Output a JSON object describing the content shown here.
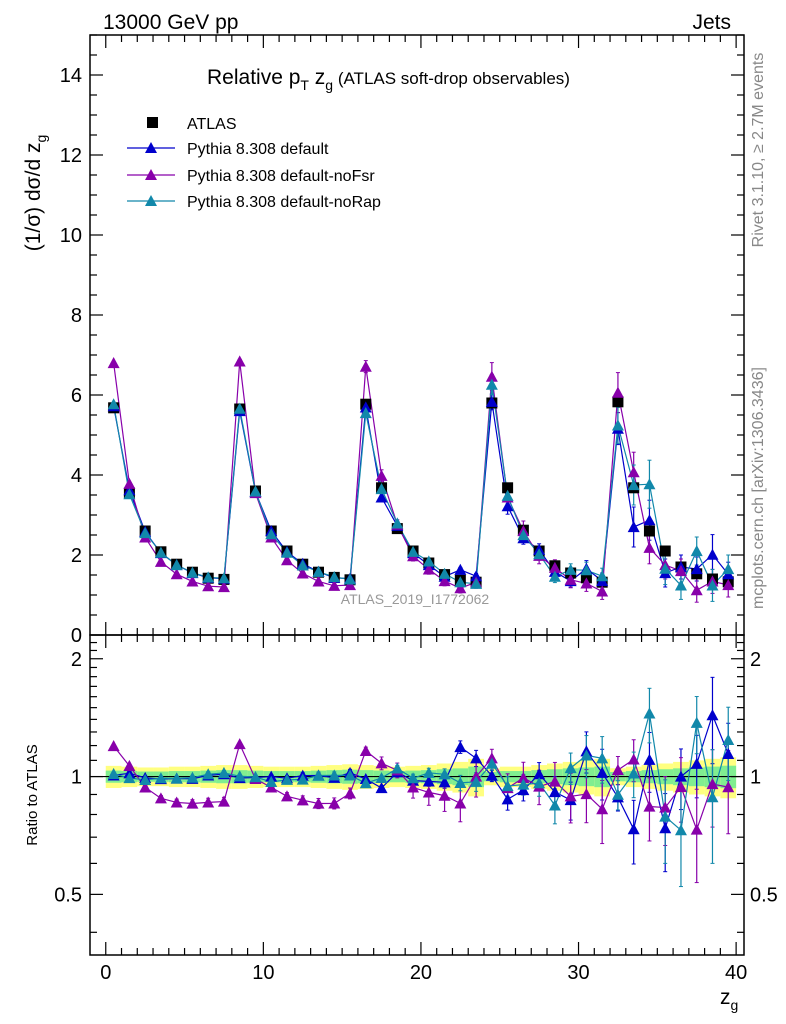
{
  "header": {
    "left": "13000 GeV pp",
    "right": "Jets"
  },
  "side_texts": {
    "rivet": "Rivet 3.1.10, ≥ 2.7M events",
    "mcplots": "mcplots.cern.ch [arXiv:1306.3436]"
  },
  "watermark": "ATLAS_2019_I1772062",
  "chart_data": {
    "type": "scatter",
    "title": "Relative pT zg (ATLAS soft-drop observables)",
    "title_parts": {
      "a": "Relative p",
      "sub1": "T",
      "b": " z",
      "sub2": "g",
      "c": " (ATLAS soft-drop observables)"
    },
    "xlabel": "zg",
    "xlabel_parts": {
      "a": "z",
      "sub": "g"
    },
    "ylabel": "(1/σ) dσ/d zg",
    "ylabel_parts": {
      "a": "(1/σ) dσ/d z",
      "sub": "g"
    },
    "ratio_ylabel": "Ratio to ATLAS",
    "xlim": [
      -1,
      40.5
    ],
    "ylim": [
      0,
      15
    ],
    "ratio_ylim": [
      0.35,
      2.3
    ],
    "xticks": [
      0,
      10,
      20,
      30,
      40
    ],
    "yticks": [
      0,
      2,
      4,
      6,
      8,
      10,
      12,
      14
    ],
    "ratio_yticks": [
      0.5,
      1,
      2
    ],
    "legend_position": "top-left",
    "x": [
      0.5,
      1.5,
      2.5,
      3.5,
      4.5,
      5.5,
      6.5,
      7.5,
      8.5,
      9.5,
      10.5,
      11.5,
      12.5,
      13.5,
      14.5,
      15.5,
      16.5,
      17.5,
      18.5,
      19.5,
      20.5,
      21.5,
      22.5,
      23.5,
      24.5,
      25.5,
      26.5,
      27.5,
      28.5,
      29.5,
      30.5,
      31.5,
      32.5,
      33.5,
      34.5,
      35.5,
      36.5,
      37.5,
      38.5,
      39.5
    ],
    "data": {
      "name": "ATLAS",
      "color": "#000000",
      "y": [
        5.68,
        3.55,
        2.6,
        2.08,
        1.77,
        1.57,
        1.42,
        1.39,
        5.65,
        3.6,
        2.6,
        2.1,
        1.77,
        1.57,
        1.44,
        1.38,
        5.77,
        3.68,
        2.66,
        2.1,
        1.8,
        1.51,
        1.37,
        1.32,
        5.8,
        3.68,
        2.62,
        2.1,
        1.73,
        1.55,
        1.43,
        1.32,
        5.83,
        3.68,
        2.6,
        2.1,
        1.7,
        1.53,
        1.4,
        1.33
      ],
      "band_half_width": [
        0.065,
        0.06,
        0.055,
        0.055,
        0.06,
        0.06,
        0.065,
        0.07,
        0.07,
        0.065,
        0.06,
        0.06,
        0.06,
        0.065,
        0.07,
        0.075,
        0.07,
        0.065,
        0.06,
        0.065,
        0.07,
        0.08,
        0.09,
        0.11,
        0.05,
        0.06,
        0.06,
        0.07,
        0.08,
        0.09,
        0.1,
        0.11,
        0.05,
        0.06,
        0.07,
        0.08,
        0.09,
        0.1,
        0.11,
        0.12
      ]
    },
    "series": [
      {
        "name": "Pythia 8.308 default",
        "color": "#0000cc",
        "y": [
          5.72,
          3.62,
          2.58,
          2.05,
          1.75,
          1.55,
          1.43,
          1.41,
          5.6,
          3.58,
          2.6,
          2.08,
          1.78,
          1.58,
          1.43,
          1.41,
          5.69,
          3.44,
          2.73,
          2.05,
          1.75,
          1.46,
          1.63,
          1.47,
          5.83,
          3.22,
          2.42,
          2.13,
          1.58,
          1.35,
          1.66,
          1.35,
          5.16,
          2.7,
          2.87,
          1.55,
          1.7,
          1.65,
          2.01,
          1.52
        ],
        "err": [
          0.02,
          0.02,
          0.02,
          0.02,
          0.02,
          0.02,
          0.02,
          0.02,
          0.04,
          0.03,
          0.03,
          0.03,
          0.03,
          0.03,
          0.03,
          0.03,
          0.05,
          0.05,
          0.05,
          0.05,
          0.05,
          0.05,
          0.06,
          0.07,
          0.2,
          0.2,
          0.15,
          0.15,
          0.15,
          0.15,
          0.2,
          0.2,
          0.4,
          0.5,
          0.5,
          0.35,
          0.3,
          0.3,
          0.5,
          0.3
        ]
      },
      {
        "name": "Pythia 8.308 default-noFsr",
        "color": "#8800aa",
        "y": [
          6.8,
          3.78,
          2.44,
          1.83,
          1.52,
          1.34,
          1.22,
          1.2,
          6.84,
          3.55,
          2.44,
          1.87,
          1.54,
          1.34,
          1.23,
          1.25,
          6.71,
          3.98,
          2.76,
          1.97,
          1.64,
          1.35,
          1.17,
          1.32,
          6.46,
          3.44,
          2.6,
          1.98,
          1.68,
          1.38,
          1.29,
          1.09,
          6.06,
          4.07,
          2.18,
          1.75,
          1.6,
          1.12,
          1.34,
          1.25
        ],
        "err": [
          0.03,
          0.03,
          0.03,
          0.03,
          0.03,
          0.03,
          0.03,
          0.03,
          0.05,
          0.05,
          0.04,
          0.04,
          0.04,
          0.04,
          0.04,
          0.04,
          0.15,
          0.15,
          0.12,
          0.12,
          0.12,
          0.12,
          0.12,
          0.15,
          0.35,
          0.3,
          0.25,
          0.2,
          0.2,
          0.2,
          0.2,
          0.2,
          0.5,
          0.5,
          0.4,
          0.35,
          0.3,
          0.3,
          0.3,
          0.3
        ]
      },
      {
        "name": "Pythia 8.308 default-noRap",
        "color": "#1188aa",
        "y": [
          5.77,
          3.52,
          2.55,
          2.06,
          1.75,
          1.56,
          1.44,
          1.42,
          5.66,
          3.59,
          2.52,
          2.06,
          1.74,
          1.58,
          1.45,
          1.39,
          5.55,
          3.65,
          2.79,
          2.08,
          1.84,
          1.53,
          1.32,
          1.28,
          6.26,
          3.48,
          2.5,
          2.02,
          1.46,
          1.63,
          1.62,
          1.47,
          5.24,
          3.75,
          3.77,
          1.66,
          1.24,
          2.1,
          1.24,
          1.65
        ],
        "err": [
          0.02,
          0.02,
          0.02,
          0.02,
          0.02,
          0.02,
          0.02,
          0.02,
          0.04,
          0.03,
          0.03,
          0.03,
          0.03,
          0.03,
          0.03,
          0.03,
          0.05,
          0.05,
          0.05,
          0.05,
          0.05,
          0.05,
          0.06,
          0.07,
          0.25,
          0.2,
          0.15,
          0.15,
          0.15,
          0.15,
          0.2,
          0.2,
          0.45,
          0.5,
          0.6,
          0.4,
          0.35,
          0.35,
          0.4,
          0.35
        ]
      }
    ]
  }
}
